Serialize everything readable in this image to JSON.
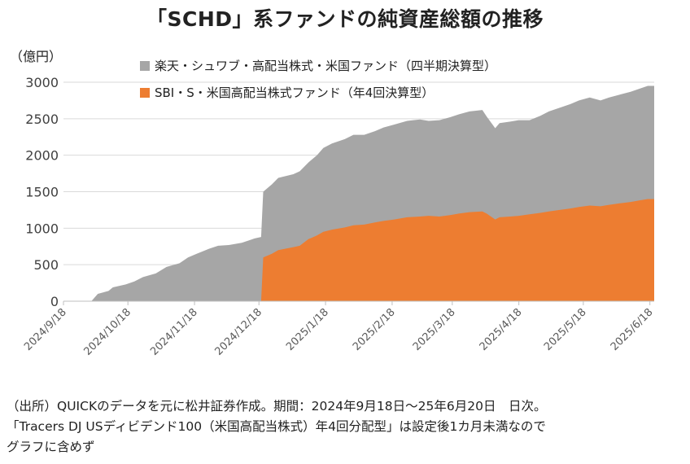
{
  "chart_data": {
    "type": "area",
    "title": "「SCHD」系ファンドの純資産総額の推移",
    "ylabel": "（億円）",
    "ylim": [
      0,
      3000
    ],
    "yticks": [
      0,
      500,
      1000,
      1500,
      2000,
      2500,
      3000
    ],
    "xticks": [
      "2024/9/18",
      "2024/10/18",
      "2024/11/18",
      "2024/12/18",
      "2025/1/18",
      "2025/2/18",
      "2025/3/18",
      "2025/4/18",
      "2025/5/18",
      "2025/6/18"
    ],
    "grid": true,
    "legend_position": "top-center",
    "stacked": true,
    "series": [
      {
        "name": "楽天・シュワブ・高配当株式・米国ファンド（四半期決算型）",
        "color": "#a6a6a6",
        "points": [
          [
            "2024-10-01",
            0
          ],
          [
            "2024-10-04",
            100
          ],
          [
            "2024-10-09",
            140
          ],
          [
            "2024-10-11",
            190
          ],
          [
            "2024-10-17",
            230
          ],
          [
            "2024-10-21",
            270
          ],
          [
            "2024-10-25",
            330
          ],
          [
            "2024-10-31",
            380
          ],
          [
            "2024-11-05",
            470
          ],
          [
            "2024-11-11",
            520
          ],
          [
            "2024-11-15",
            600
          ],
          [
            "2024-11-19",
            650
          ],
          [
            "2024-11-25",
            720
          ],
          [
            "2024-11-29",
            760
          ],
          [
            "2024-12-04",
            770
          ],
          [
            "2024-12-10",
            800
          ],
          [
            "2024-12-13",
            830
          ],
          [
            "2024-12-16",
            860
          ],
          [
            "2024-12-19",
            880
          ],
          [
            "2024-12-20",
            900
          ],
          [
            "2024-12-24",
            950
          ],
          [
            "2024-12-27",
            990
          ],
          [
            "2025-01-03",
            1000
          ],
          [
            "2025-01-06",
            1020
          ],
          [
            "2025-01-10",
            1050
          ],
          [
            "2025-01-14",
            1100
          ],
          [
            "2025-01-17",
            1150
          ],
          [
            "2025-01-21",
            1180
          ],
          [
            "2025-01-27",
            1210
          ],
          [
            "2025-01-31",
            1240
          ],
          [
            "2025-02-05",
            1230
          ],
          [
            "2025-02-10",
            1250
          ],
          [
            "2025-02-14",
            1280
          ],
          [
            "2025-02-19",
            1300
          ],
          [
            "2025-02-25",
            1320
          ],
          [
            "2025-03-03",
            1330
          ],
          [
            "2025-03-07",
            1300
          ],
          [
            "2025-03-12",
            1320
          ],
          [
            "2025-03-17",
            1340
          ],
          [
            "2025-03-21",
            1360
          ],
          [
            "2025-03-26",
            1380
          ],
          [
            "2025-04-01",
            1390
          ],
          [
            "2025-04-03",
            1330
          ],
          [
            "2025-04-07",
            1250
          ],
          [
            "2025-04-09",
            1290
          ],
          [
            "2025-04-14",
            1300
          ],
          [
            "2025-04-18",
            1310
          ],
          [
            "2025-04-23",
            1290
          ],
          [
            "2025-04-28",
            1330
          ],
          [
            "2025-05-02",
            1370
          ],
          [
            "2025-05-07",
            1400
          ],
          [
            "2025-05-12",
            1430
          ],
          [
            "2025-05-16",
            1460
          ],
          [
            "2025-05-21",
            1480
          ],
          [
            "2025-05-26",
            1450
          ],
          [
            "2025-05-30",
            1470
          ],
          [
            "2025-06-04",
            1490
          ],
          [
            "2025-06-09",
            1510
          ],
          [
            "2025-06-13",
            1530
          ],
          [
            "2025-06-17",
            1550
          ],
          [
            "2025-06-20",
            1550
          ]
        ]
      },
      {
        "name": "SBI・S・米国高配当株式ファンド（年4回決算型）",
        "color": "#ed7d31",
        "points": [
          [
            "2024-12-19",
            0
          ],
          [
            "2024-12-20",
            600
          ],
          [
            "2024-12-24",
            650
          ],
          [
            "2024-12-27",
            700
          ],
          [
            "2025-01-03",
            740
          ],
          [
            "2025-01-06",
            760
          ],
          [
            "2025-01-10",
            850
          ],
          [
            "2025-01-14",
            900
          ],
          [
            "2025-01-17",
            950
          ],
          [
            "2025-01-21",
            980
          ],
          [
            "2025-01-27",
            1010
          ],
          [
            "2025-01-31",
            1040
          ],
          [
            "2025-02-05",
            1050
          ],
          [
            "2025-02-10",
            1080
          ],
          [
            "2025-02-14",
            1100
          ],
          [
            "2025-02-19",
            1120
          ],
          [
            "2025-02-25",
            1150
          ],
          [
            "2025-03-03",
            1160
          ],
          [
            "2025-03-07",
            1170
          ],
          [
            "2025-03-12",
            1160
          ],
          [
            "2025-03-17",
            1180
          ],
          [
            "2025-03-21",
            1200
          ],
          [
            "2025-03-26",
            1220
          ],
          [
            "2025-04-01",
            1230
          ],
          [
            "2025-04-03",
            1200
          ],
          [
            "2025-04-07",
            1120
          ],
          [
            "2025-04-09",
            1150
          ],
          [
            "2025-04-14",
            1160
          ],
          [
            "2025-04-18",
            1170
          ],
          [
            "2025-04-23",
            1190
          ],
          [
            "2025-04-28",
            1210
          ],
          [
            "2025-05-02",
            1230
          ],
          [
            "2025-05-07",
            1250
          ],
          [
            "2025-05-12",
            1270
          ],
          [
            "2025-05-16",
            1290
          ],
          [
            "2025-05-21",
            1310
          ],
          [
            "2025-05-26",
            1300
          ],
          [
            "2025-05-30",
            1320
          ],
          [
            "2025-06-04",
            1340
          ],
          [
            "2025-06-09",
            1360
          ],
          [
            "2025-06-13",
            1380
          ],
          [
            "2025-06-17",
            1400
          ],
          [
            "2025-06-20",
            1400
          ]
        ]
      }
    ]
  },
  "footnote": {
    "line1": "（出所）QUICKのデータを元に松井証券作成。期間：2024年9月18日～25年6月20日　日次。",
    "line2": "「Tracers DJ USディビデンド100（米国高配当株式）年4回分配型」は設定後1カ月未満なので",
    "line3": "グラフに含めず"
  }
}
